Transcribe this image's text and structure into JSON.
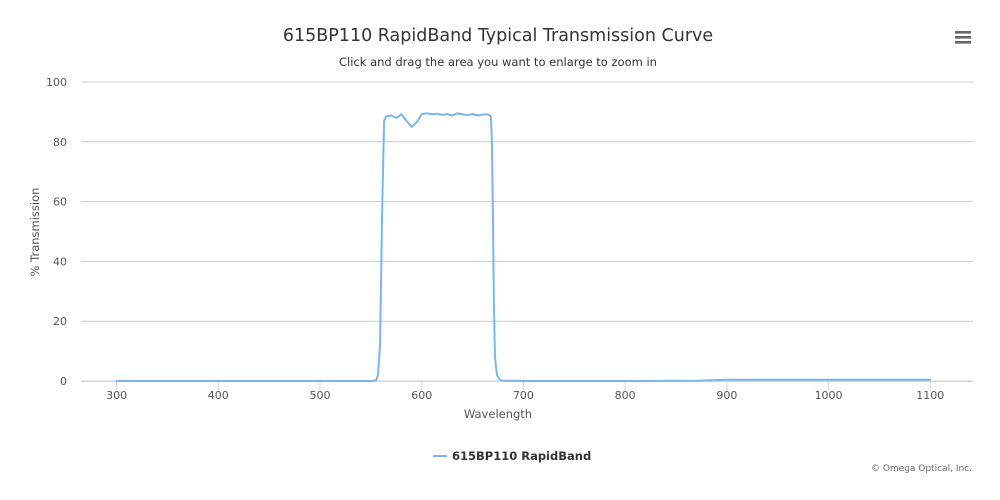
{
  "chart_data": {
    "type": "line",
    "title": "615BP110 RapidBand Typical Transmission Curve",
    "subtitle": "Click and drag the area you want to enlarge to zoom in",
    "xlabel": "Wavelength",
    "ylabel": "% Transmission",
    "xlim": [
      265,
      1142
    ],
    "ylim": [
      0,
      100
    ],
    "x_ticks": [
      "300",
      "400",
      "500",
      "600",
      "700",
      "800",
      "900",
      "1000",
      "1100"
    ],
    "y_ticks": [
      "0",
      "20",
      "40",
      "60",
      "80",
      "100"
    ],
    "grid": true,
    "legend_position": "bottom-center",
    "credits": "© Omega Optical, Inc.",
    "colors": {
      "series": "#7cb5ec",
      "grid": "#cccccc"
    },
    "series": [
      {
        "name": "615BP110 RapidBand",
        "x": [
          300,
          400,
          500,
          550,
          555,
          557,
          559,
          561,
          563,
          565,
          570,
          575,
          580,
          585,
          590,
          595,
          600,
          605,
          610,
          615,
          620,
          625,
          630,
          635,
          640,
          645,
          650,
          655,
          660,
          665,
          668,
          669,
          670,
          671,
          672,
          674,
          677,
          680,
          700,
          800,
          870,
          900,
          1000,
          1100
        ],
        "y": [
          0,
          0,
          0,
          0,
          0.2,
          2,
          12,
          55,
          87,
          88.5,
          88.8,
          88,
          89.2,
          87,
          85,
          86.5,
          89.2,
          89.5,
          89.2,
          89.4,
          89,
          89.3,
          88.8,
          89.5,
          89.2,
          88.9,
          89.3,
          88.8,
          89.1,
          89.2,
          88.5,
          80,
          55,
          25,
          8,
          2,
          0.4,
          0.1,
          0,
          0,
          0.1,
          0.4,
          0.4,
          0.4
        ]
      }
    ]
  },
  "menu": {
    "icon": "hamburger-icon"
  }
}
